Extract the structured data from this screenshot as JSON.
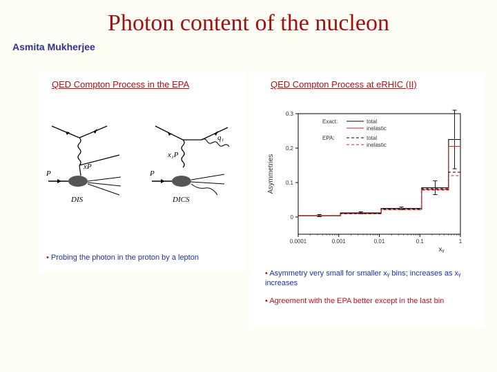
{
  "title": "Photon content of the nucleon",
  "author": "Asmita Mukherjee",
  "left": {
    "header": "QED Compton Process in the EPA",
    "caption": "Probing the photon in the proton by a lepton",
    "diagrams": {
      "dis": {
        "label": "DIS",
        "P_label": "P",
        "xP_label": "xP"
      },
      "dics": {
        "label": "DICS",
        "P_label": "P",
        "x1P_label": "x₁P",
        "q1_label": "q₁"
      }
    }
  },
  "right": {
    "header": "QED Compton Process at eRHIC (II)",
    "caption1": "Asymmetry very small for smaller xᵧ bins; increases as xᵧ increases",
    "caption2": "Agreement with the EPA better except in the last bin",
    "chart": {
      "type": "log-linear-step",
      "ylabel": "Asymmetries",
      "xlabel": "xᵧ",
      "ylim": [
        -0.05,
        0.3
      ],
      "yticks": [
        0,
        0.1,
        0.2,
        0.3
      ],
      "xlim_log10": [
        -4,
        0
      ],
      "xtick_labels": [
        "0.0001",
        "0.001",
        "0.01",
        "0.1",
        "1"
      ],
      "background_color": "#ffffff",
      "axis_color": "#000000",
      "series": {
        "exact_total": {
          "color": "#000000",
          "dash": "none",
          "widths": [
            0.001,
            0.01,
            0.1,
            0.4,
            0.5
          ],
          "y": [
            0.004,
            0.012,
            0.025,
            0.085,
            0.225
          ],
          "err": [
            0.003,
            0.003,
            0.004,
            0.02,
            0.085
          ]
        },
        "exact_inelastic": {
          "color": "#c02020",
          "dash": "none",
          "widths": [
            0.001,
            0.01,
            0.1,
            0.4,
            0.5
          ],
          "y": [
            0.003,
            0.01,
            0.022,
            0.08,
            0.205
          ]
        },
        "epa_total": {
          "color": "#000000",
          "dash": "4,3",
          "widths": [
            0.001,
            0.01,
            0.1,
            0.4,
            0.5
          ],
          "y": [
            0.004,
            0.011,
            0.024,
            0.082,
            0.13
          ]
        },
        "epa_inelastic": {
          "color": "#c02020",
          "dash": "4,3",
          "widths": [
            0.001,
            0.01,
            0.1,
            0.4,
            0.5
          ],
          "y": [
            0.003,
            0.009,
            0.021,
            0.078,
            0.12
          ]
        }
      },
      "legend": {
        "exact_label": "Exact:",
        "epa_label": "EPA:",
        "total_label": "total",
        "inelastic_label": "inelastic"
      }
    }
  }
}
